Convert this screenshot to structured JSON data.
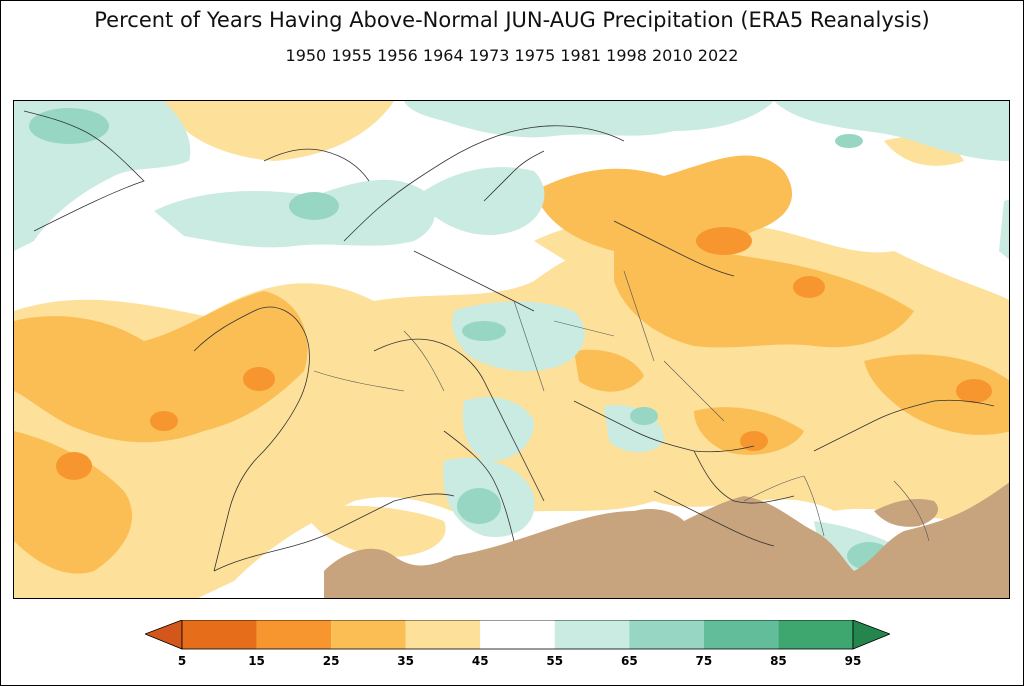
{
  "title": "Percent of Years Having Above-Normal JUN-AUG Precipitation (ERA5 Reanalysis)",
  "subtitle": "1950 1955 1956 1964 1973 1975 1981 1998 2010 2022",
  "legend": {
    "ticks": [
      "5",
      "15",
      "25",
      "35",
      "45",
      "55",
      "65",
      "75",
      "85",
      "95"
    ],
    "colors": [
      "#e66d1a",
      "#f7962e",
      "#fbbe55",
      "#fde09a",
      "#ffffff",
      "#c9ebe1",
      "#97d6c3",
      "#62bd9b",
      "#3ea66f"
    ],
    "under_color": "#d3561a",
    "over_color": "#25864d",
    "orientation": "horizontal",
    "position": "bottom"
  },
  "map": {
    "region": "Europe",
    "masked_color": "#c8a47e",
    "coastline_color": "#333333"
  }
}
